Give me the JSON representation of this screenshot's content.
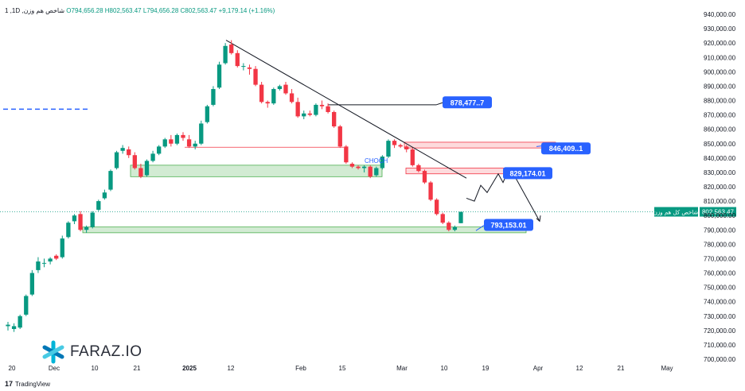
{
  "header": {
    "symbol": "1 ,1D ,شاخص هم وزن",
    "ohlc": "O794,656.28  H802,563.47  L794,656.28  C802,563.47  +9,179.14 (+1.16%)"
  },
  "logo": {
    "text": "FARAZ.IO",
    "icon": "asterisk-logo-icon"
  },
  "footer": {
    "brand": "TradingView",
    "icon": "tradingview-icon"
  },
  "chart_data": {
    "type": "candlestick",
    "y_range": [
      700000,
      940000
    ],
    "y_ticks": [
      "940,000.00",
      "930,000.00",
      "920,000.00",
      "910,000.00",
      "900,000.00",
      "890,000.00",
      "880,000.00",
      "870,000.00",
      "860,000.00",
      "850,000.00",
      "840,000.00",
      "830,000.00",
      "820,000.00",
      "810,000.00",
      "800,000.00",
      "790,000.00",
      "780,000.00",
      "770,000.00",
      "760,000.00",
      "750,000.00",
      "740,000.00",
      "730,000.00",
      "720,000.00",
      "710,000.00",
      "700,000.00"
    ],
    "x_ticks": [
      "20",
      "Dec",
      "10",
      "21",
      "2025",
      "12",
      "Feb",
      "15",
      "Mar",
      "10",
      "19",
      "Apr",
      "12",
      "21",
      "May"
    ],
    "last_price": {
      "label": "شاخص کل هم وزن",
      "value": "802,563.47",
      "y": 802563.47
    },
    "candles": [
      {
        "o": 723000,
        "h": 726000,
        "l": 720000,
        "c": 724000
      },
      {
        "o": 721000,
        "h": 725000,
        "l": 719000,
        "c": 723000
      },
      {
        "o": 722000,
        "h": 731000,
        "l": 721000,
        "c": 730000
      },
      {
        "o": 731000,
        "h": 745000,
        "l": 730000,
        "c": 744000
      },
      {
        "o": 745000,
        "h": 762000,
        "l": 744000,
        "c": 760000
      },
      {
        "o": 762000,
        "h": 771000,
        "l": 760000,
        "c": 768000
      },
      {
        "o": 767000,
        "h": 770000,
        "l": 764000,
        "c": 767000
      },
      {
        "o": 768000,
        "h": 771000,
        "l": 766000,
        "c": 770000
      },
      {
        "o": 772000,
        "h": 773000,
        "l": 769000,
        "c": 770000
      },
      {
        "o": 771000,
        "h": 786000,
        "l": 770000,
        "c": 784000
      },
      {
        "o": 785000,
        "h": 796000,
        "l": 784000,
        "c": 795000
      },
      {
        "o": 796000,
        "h": 801000,
        "l": 794000,
        "c": 800000
      },
      {
        "o": 801000,
        "h": 803000,
        "l": 789000,
        "c": 790000
      },
      {
        "o": 790000,
        "h": 793000,
        "l": 788000,
        "c": 792000
      },
      {
        "o": 792000,
        "h": 803000,
        "l": 791000,
        "c": 802000
      },
      {
        "o": 804000,
        "h": 811000,
        "l": 803000,
        "c": 810000
      },
      {
        "o": 812000,
        "h": 818000,
        "l": 811000,
        "c": 816000
      },
      {
        "o": 818000,
        "h": 832000,
        "l": 817000,
        "c": 831000
      },
      {
        "o": 833000,
        "h": 845000,
        "l": 832000,
        "c": 844000
      },
      {
        "o": 845000,
        "h": 849000,
        "l": 843000,
        "c": 847000
      },
      {
        "o": 846000,
        "h": 848000,
        "l": 840000,
        "c": 842000
      },
      {
        "o": 842000,
        "h": 844000,
        "l": 832000,
        "c": 833000
      },
      {
        "o": 833000,
        "h": 836000,
        "l": 826000,
        "c": 827000
      },
      {
        "o": 828000,
        "h": 839000,
        "l": 827000,
        "c": 838000
      },
      {
        "o": 838000,
        "h": 845000,
        "l": 837000,
        "c": 843000
      },
      {
        "o": 843000,
        "h": 849000,
        "l": 842000,
        "c": 848000
      },
      {
        "o": 848000,
        "h": 854000,
        "l": 847000,
        "c": 853000
      },
      {
        "o": 853000,
        "h": 856000,
        "l": 848000,
        "c": 850000
      },
      {
        "o": 850000,
        "h": 857000,
        "l": 849000,
        "c": 856000
      },
      {
        "o": 856000,
        "h": 858000,
        "l": 852000,
        "c": 854000
      },
      {
        "o": 853000,
        "h": 856000,
        "l": 847000,
        "c": 848000
      },
      {
        "o": 848000,
        "h": 852000,
        "l": 846000,
        "c": 850000
      },
      {
        "o": 850000,
        "h": 866000,
        "l": 849000,
        "c": 864000
      },
      {
        "o": 865000,
        "h": 877000,
        "l": 864000,
        "c": 876000
      },
      {
        "o": 877000,
        "h": 890000,
        "l": 876000,
        "c": 888000
      },
      {
        "o": 889000,
        "h": 907000,
        "l": 888000,
        "c": 905000
      },
      {
        "o": 906000,
        "h": 920000,
        "l": 905000,
        "c": 918000
      },
      {
        "o": 919000,
        "h": 922000,
        "l": 912000,
        "c": 913000
      },
      {
        "o": 913000,
        "h": 915000,
        "l": 903000,
        "c": 904000
      },
      {
        "o": 904000,
        "h": 906000,
        "l": 901000,
        "c": 904000
      },
      {
        "o": 903000,
        "h": 905000,
        "l": 898000,
        "c": 902000
      },
      {
        "o": 902000,
        "h": 904000,
        "l": 890000,
        "c": 891000
      },
      {
        "o": 891000,
        "h": 893000,
        "l": 878000,
        "c": 879000
      },
      {
        "o": 879000,
        "h": 880000,
        "l": 875000,
        "c": 878000
      },
      {
        "o": 878000,
        "h": 889000,
        "l": 877000,
        "c": 888000
      },
      {
        "o": 888000,
        "h": 891000,
        "l": 887000,
        "c": 890000
      },
      {
        "o": 891000,
        "h": 893000,
        "l": 884000,
        "c": 885000
      },
      {
        "o": 885000,
        "h": 888000,
        "l": 878000,
        "c": 879000
      },
      {
        "o": 879000,
        "h": 882000,
        "l": 868000,
        "c": 869000
      },
      {
        "o": 869000,
        "h": 873000,
        "l": 867000,
        "c": 871000
      },
      {
        "o": 871000,
        "h": 873000,
        "l": 869000,
        "c": 870000
      },
      {
        "o": 870000,
        "h": 878000,
        "l": 869000,
        "c": 877000
      },
      {
        "o": 877000,
        "h": 880000,
        "l": 874000,
        "c": 876000
      },
      {
        "o": 876000,
        "h": 878000,
        "l": 871000,
        "c": 872000
      },
      {
        "o": 872000,
        "h": 873000,
        "l": 861000,
        "c": 862000
      },
      {
        "o": 862000,
        "h": 863000,
        "l": 847000,
        "c": 848000
      },
      {
        "o": 848000,
        "h": 849000,
        "l": 836000,
        "c": 837000
      },
      {
        "o": 836000,
        "h": 837000,
        "l": 833000,
        "c": 834000
      },
      {
        "o": 834000,
        "h": 835000,
        "l": 832000,
        "c": 833000
      },
      {
        "o": 833000,
        "h": 835000,
        "l": 830000,
        "c": 834000
      },
      {
        "o": 834000,
        "h": 835000,
        "l": 826000,
        "c": 827000
      },
      {
        "o": 828000,
        "h": 834000,
        "l": 827000,
        "c": 833000
      },
      {
        "o": 833000,
        "h": 842000,
        "l": 832000,
        "c": 841000
      },
      {
        "o": 841000,
        "h": 853000,
        "l": 840000,
        "c": 852000
      },
      {
        "o": 852000,
        "h": 853000,
        "l": 847000,
        "c": 849000
      },
      {
        "o": 849000,
        "h": 850000,
        "l": 847000,
        "c": 848000
      },
      {
        "o": 848000,
        "h": 849000,
        "l": 844000,
        "c": 846000
      },
      {
        "o": 846000,
        "h": 847000,
        "l": 834000,
        "c": 835000
      },
      {
        "o": 835000,
        "h": 836000,
        "l": 830000,
        "c": 831000
      },
      {
        "o": 831000,
        "h": 832000,
        "l": 822000,
        "c": 823000
      },
      {
        "o": 823000,
        "h": 824000,
        "l": 810000,
        "c": 811000
      },
      {
        "o": 811000,
        "h": 812000,
        "l": 800000,
        "c": 801000
      },
      {
        "o": 801000,
        "h": 802000,
        "l": 794000,
        "c": 795000
      },
      {
        "o": 795000,
        "h": 796000,
        "l": 789000,
        "c": 790000
      },
      {
        "o": 790000,
        "h": 793000,
        "l": 789000,
        "c": 792000
      },
      {
        "o": 794656,
        "h": 802563,
        "l": 794656,
        "c": 802563
      }
    ],
    "zones": [
      {
        "kind": "demand",
        "y1": 835000,
        "y2": 827000
      },
      {
        "kind": "demand",
        "y1": 792000,
        "y2": 788000
      },
      {
        "kind": "supply",
        "y1": 851000,
        "y2": 847000
      },
      {
        "kind": "supply",
        "y1": 833000,
        "y2": 829000
      }
    ],
    "annotations": [
      {
        "label": "878,477..7",
        "y": 878477
      },
      {
        "label": "846,409..1",
        "y": 846409
      },
      {
        "label": "829,174.01",
        "y": 829174
      },
      {
        "label": "793,153.01",
        "y": 793153
      },
      {
        "label": "CHOCH",
        "kind": "text"
      }
    ],
    "dashed_level": 874000,
    "grid": false
  }
}
